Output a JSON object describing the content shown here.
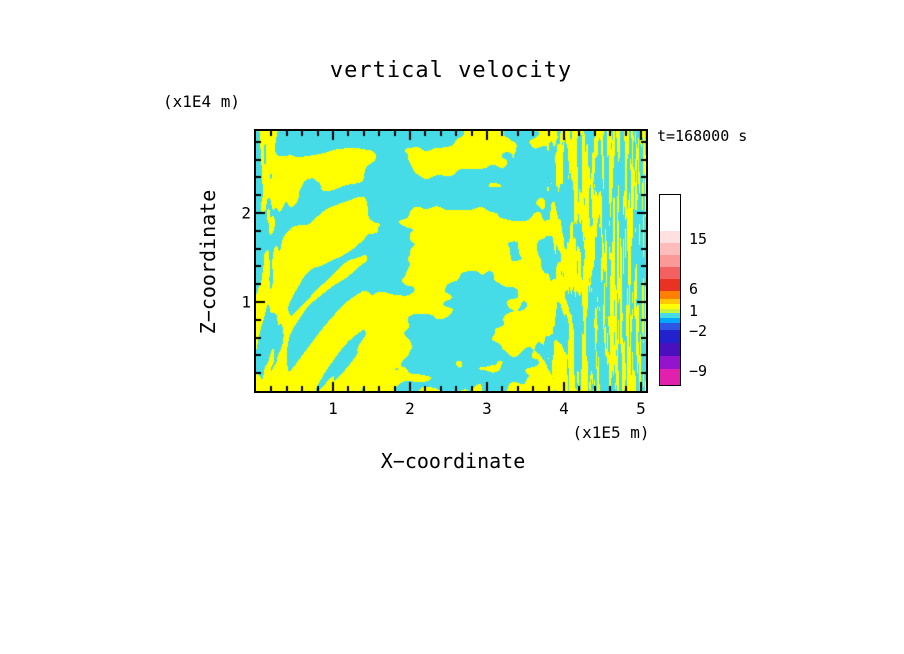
{
  "title": "vertical velocity",
  "time_label": "t=168000 s",
  "axes": {
    "x": {
      "title": "X−coordinate",
      "units": "(x1E5 m)"
    },
    "z": {
      "title": "Z−coordinate",
      "units": "(x1E4 m)"
    }
  },
  "chart_data": {
    "type": "heatmap",
    "title": "vertical velocity",
    "xlabel": "X−coordinate",
    "ylabel": "Z−coordinate",
    "x_units": "x1E5 m",
    "y_units": "x1E4 m",
    "time_annotation": "t=168000 s",
    "x_range": [
      0,
      5.1
    ],
    "z_range": [
      0,
      3.0
    ],
    "x_ticks": [
      1,
      2,
      3,
      4,
      5
    ],
    "z_ticks": [
      1,
      2
    ],
    "x_minor_step": 0.2,
    "z_minor_step": 0.2,
    "grid": false,
    "legend_position": "right-colorbar",
    "field_fill": {
      "positive_color": "#FFFF00",
      "negative_color": "#45DCE8",
      "description": "Two-tone filled contour field of vertical velocity at t=168000 s: yellow cells are the weak-updraft band (values between about 1 and 6), cyan cells are the weak-downdraft band (values between about −2 and 1). Interior shows broad irregular convective cells roughly 40-80 px wide; near the left and right lateral boundaries the field breaks into fine vertical stripes."
    },
    "pattern": {
      "seed": 11,
      "base_fx": 0.023,
      "base_fy": 0.034,
      "octaves": 3,
      "threshold": 0.5,
      "edge_stripe": 4.2
    },
    "colorbar": {
      "bands": [
        {
          "color": "#FFFFFF",
          "height": 36
        },
        {
          "color": "#FFE0E0",
          "height": 12
        },
        {
          "color": "#FFBCBC",
          "height": 12
        },
        {
          "color": "#FB9898",
          "height": 12
        },
        {
          "color": "#F26060",
          "height": 12
        },
        {
          "color": "#E83222",
          "height": 12
        },
        {
          "color": "#FF7F00",
          "height": 8
        },
        {
          "color": "#FFC800",
          "height": 5
        },
        {
          "color": "#FFFF00",
          "height": 5
        },
        {
          "color": "#C8F53C",
          "height": 4
        },
        {
          "color": "#45DCE8",
          "height": 5
        },
        {
          "color": "#00A8FF",
          "height": 5
        },
        {
          "color": "#2E55E6",
          "height": 7
        },
        {
          "color": "#2222CC",
          "height": 13
        },
        {
          "color": "#4A10BE",
          "height": 13
        },
        {
          "color": "#9414CE",
          "height": 13
        },
        {
          "color": "#E121AE",
          "height": 16
        }
      ],
      "labels": [
        {
          "text": "15",
          "offset": 44
        },
        {
          "text": "6",
          "offset": 94
        },
        {
          "text": "1",
          "offset": 116
        },
        {
          "text": "−2",
          "offset": 136
        },
        {
          "text": "−9",
          "offset": 176
        }
      ]
    }
  }
}
